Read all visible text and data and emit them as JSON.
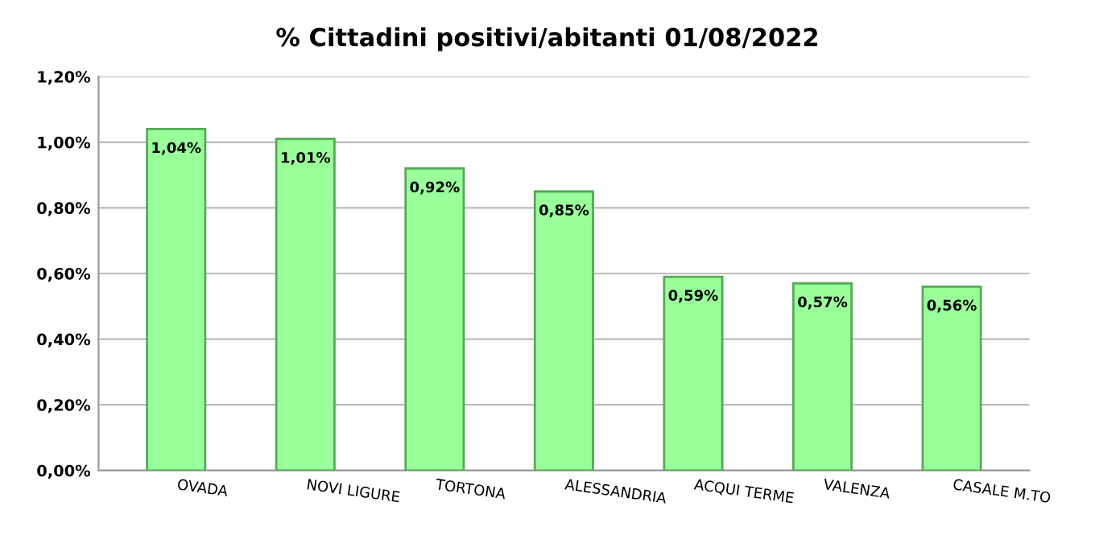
{
  "chart_data": {
    "type": "bar",
    "title": "% Cittadini positivi/abitanti 01/08/2022",
    "categories": [
      "OVADA",
      "NOVI LIGURE",
      "TORTONA",
      "ALESSANDRIA",
      "ACQUI TERME",
      "VALENZA",
      "CASALE M.TO"
    ],
    "values": [
      1.04,
      1.01,
      0.92,
      0.85,
      0.59,
      0.57,
      0.56
    ],
    "value_labels": [
      "1,04%",
      "1,01%",
      "0,92%",
      "0,85%",
      "0,59%",
      "0,57%",
      "0,56%"
    ],
    "color": "#99ff99",
    "ylim": [
      0,
      1.2
    ],
    "yticks": [
      {
        "value": 0,
        "label": "0,00%"
      },
      {
        "value": 0.2,
        "label": "0,20%"
      },
      {
        "value": 0.4,
        "label": "0,40%"
      },
      {
        "value": 0.6,
        "label": "0,60%"
      },
      {
        "value": 0.8,
        "label": "0,80%"
      },
      {
        "value": 1.0,
        "label": "1,00%"
      },
      {
        "value": 1.2,
        "label": "1,20%"
      }
    ],
    "grid": "y"
  }
}
